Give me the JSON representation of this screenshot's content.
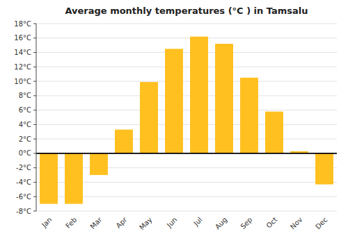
{
  "chart_data": {
    "type": "bar",
    "title": "Average monthly temperatures (°C ) in Tamsalu",
    "categories": [
      "Jan",
      "Feb",
      "Mar",
      "Apr",
      "May",
      "Jun",
      "Jul",
      "Aug",
      "Sep",
      "Oct",
      "Nov",
      "Dec"
    ],
    "values": [
      -7.0,
      -7.0,
      -3.0,
      3.3,
      9.9,
      14.5,
      16.2,
      15.2,
      10.5,
      5.8,
      0.3,
      -4.3
    ],
    "color": "#FFC020",
    "ylim": [
      -8,
      18
    ],
    "yticks": [
      {
        "value": -8,
        "label": "-8°C"
      },
      {
        "value": -6,
        "label": "-6°C"
      },
      {
        "value": -4,
        "label": "-4°C"
      },
      {
        "value": -2,
        "label": "-2°C"
      },
      {
        "value": 0,
        "label": "0°C"
      },
      {
        "value": 2,
        "label": "2°C"
      },
      {
        "value": 4,
        "label": "4°C"
      },
      {
        "value": 6,
        "label": "6°C"
      },
      {
        "value": 8,
        "label": "8°C"
      },
      {
        "value": 10,
        "label": "10°C"
      },
      {
        "value": 12,
        "label": "12°C"
      },
      {
        "value": 14,
        "label": "14°C"
      },
      {
        "value": 16,
        "label": "16°C"
      },
      {
        "value": 18,
        "label": "18°C"
      }
    ],
    "grid": true
  }
}
